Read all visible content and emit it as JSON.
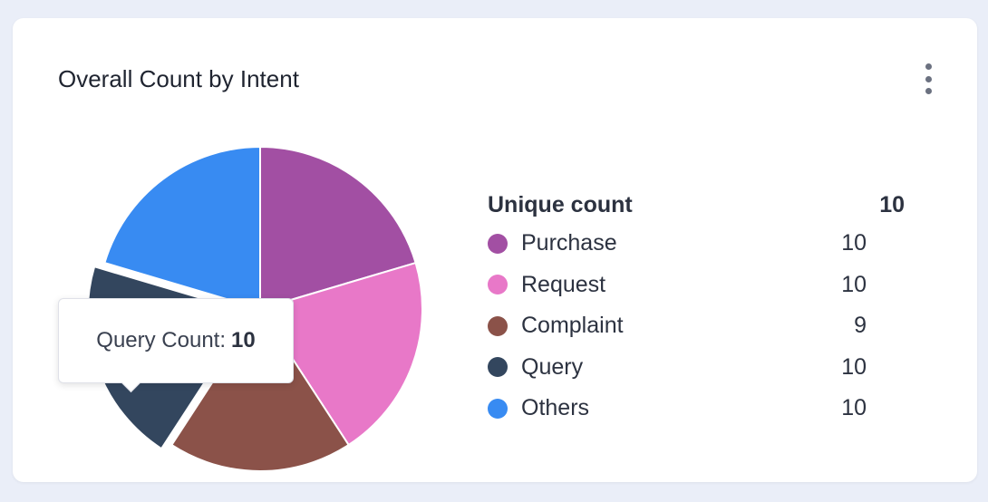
{
  "title": "Overall Count by Intent",
  "chart_data": {
    "type": "pie",
    "title": "Overall Count by Intent",
    "categories": [
      "Purchase",
      "Request",
      "Complaint",
      "Query",
      "Others"
    ],
    "values": [
      10,
      10,
      9,
      10,
      10
    ],
    "colors": [
      "#a24fa3",
      "#e878c8",
      "#8b5249",
      "#33465e",
      "#388bf2"
    ],
    "highlighted": "Query",
    "legend": {
      "header_label": "Unique count",
      "header_value": "10",
      "position": "right"
    }
  },
  "tooltip": {
    "label": "Query Count:",
    "value": "10"
  }
}
